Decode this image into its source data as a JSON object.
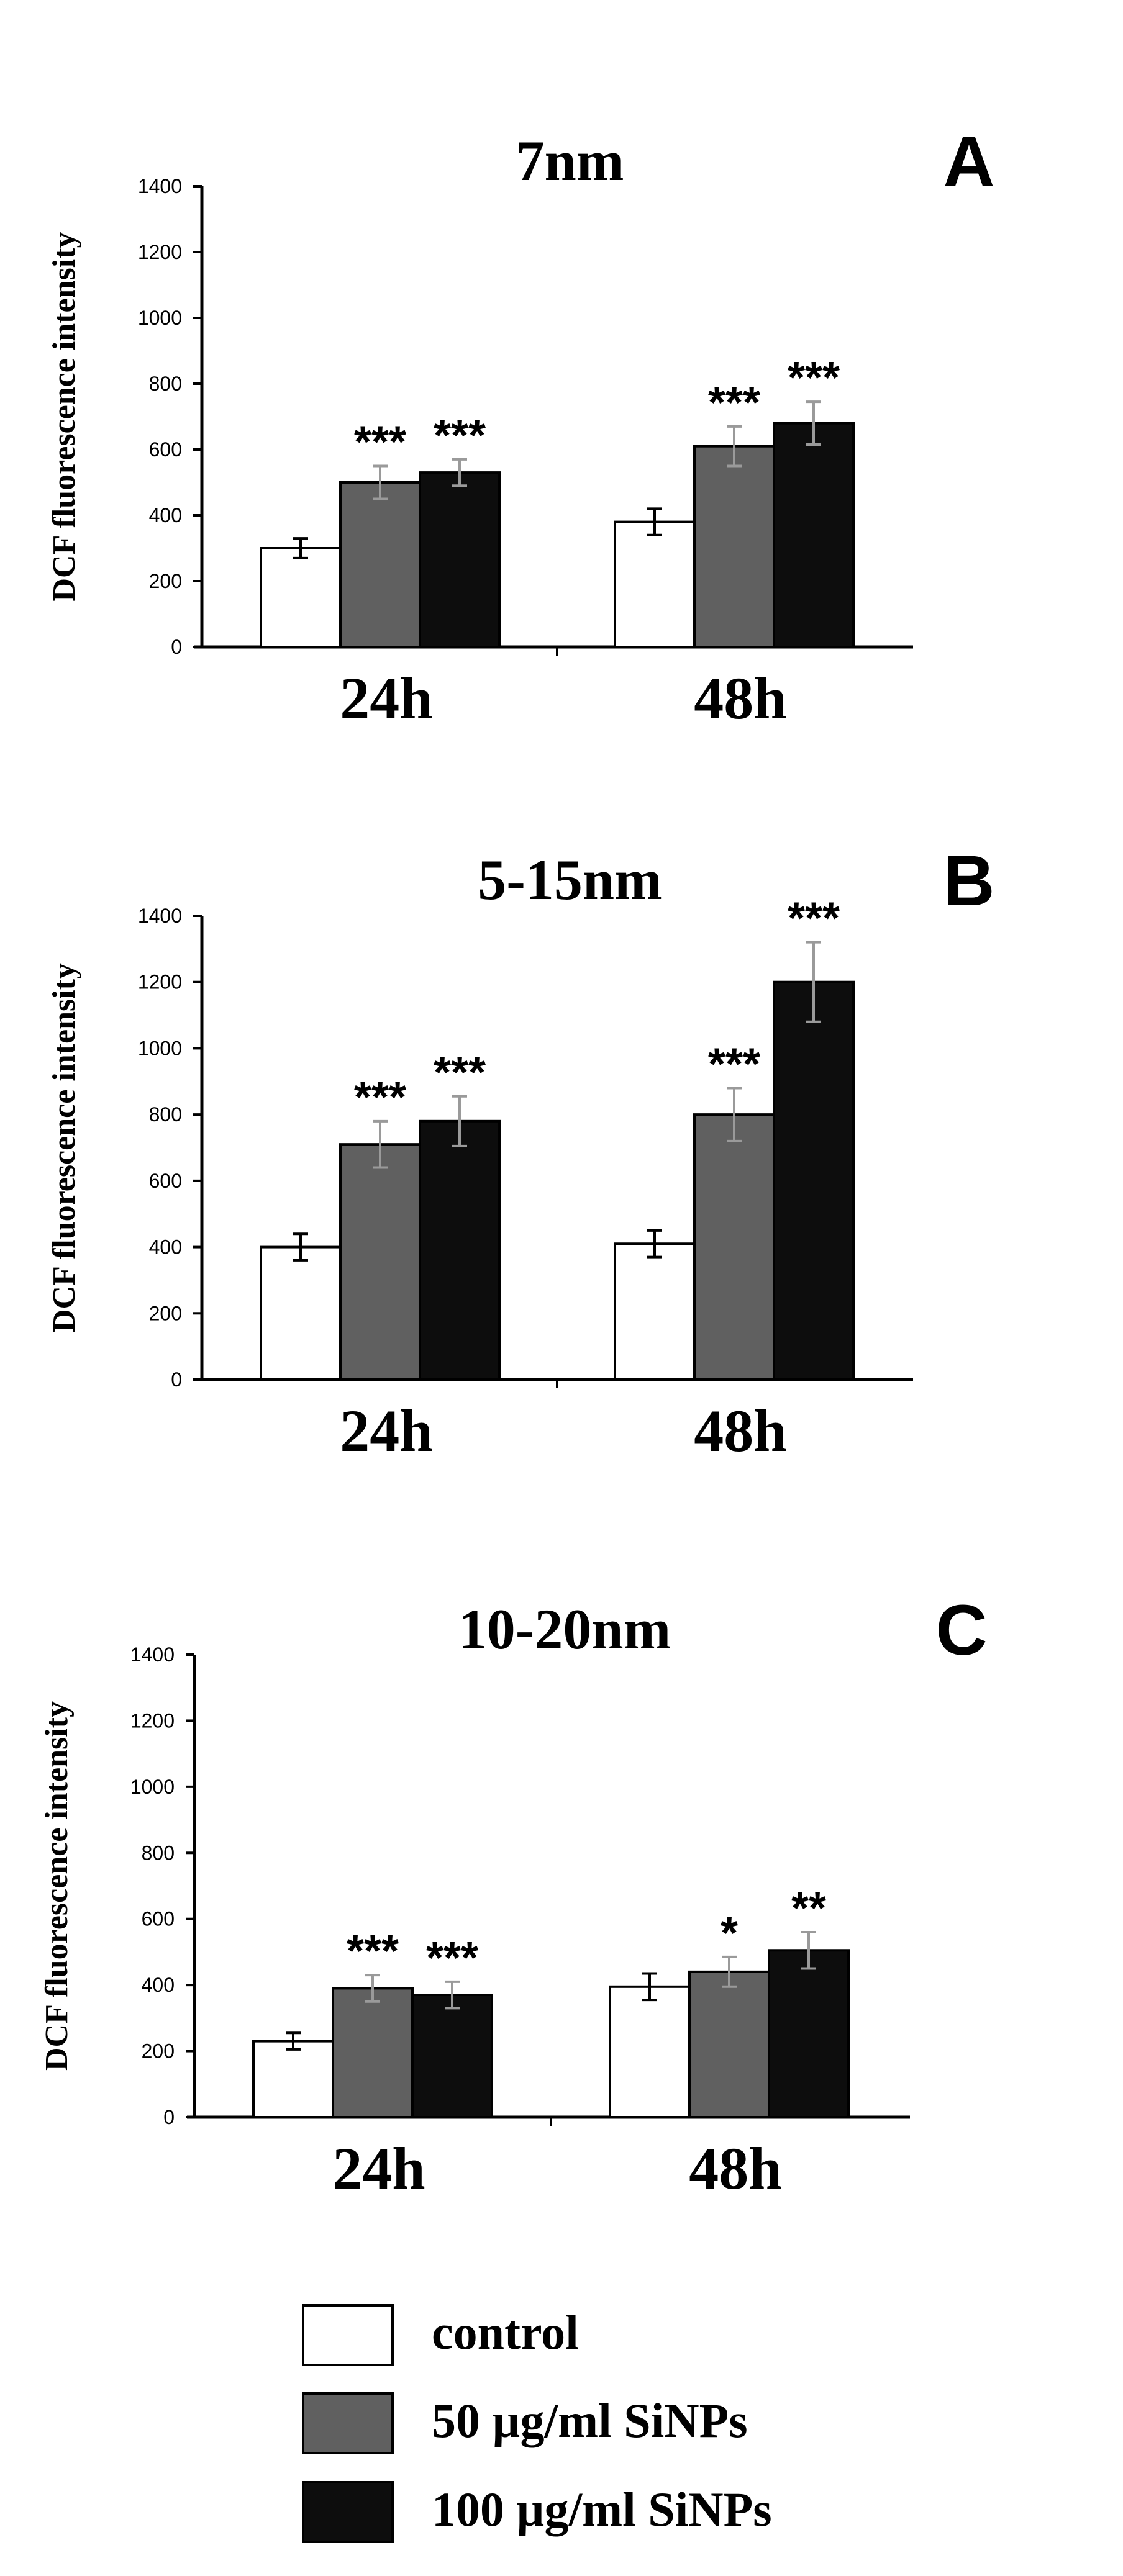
{
  "chart_data": [
    {
      "type": "bar",
      "panel_letter": "A",
      "title": "7nm",
      "ylabel": "DCF fluorescence intensity",
      "ylim": [
        0,
        1400
      ],
      "yticks": [
        0,
        200,
        400,
        600,
        800,
        1000,
        1200,
        1400
      ],
      "categories": [
        "24h",
        "48h"
      ],
      "series": [
        {
          "values": [
            300,
            380
          ],
          "errors": [
            30,
            40
          ],
          "significance": [
            "",
            ""
          ]
        },
        {
          "values": [
            500,
            610
          ],
          "errors": [
            50,
            60
          ],
          "significance": [
            "***",
            "***"
          ]
        },
        {
          "values": [
            530,
            680
          ],
          "errors": [
            40,
            65
          ],
          "significance": [
            "***",
            "***"
          ]
        }
      ]
    },
    {
      "type": "bar",
      "panel_letter": "B",
      "title": "5-15nm",
      "ylabel": "DCF fluorescence intensity",
      "ylim": [
        0,
        1400
      ],
      "yticks": [
        0,
        200,
        400,
        600,
        800,
        1000,
        1200,
        1400
      ],
      "categories": [
        "24h",
        "48h"
      ],
      "series": [
        {
          "values": [
            400,
            410
          ],
          "errors": [
            40,
            40
          ],
          "significance": [
            "",
            ""
          ]
        },
        {
          "values": [
            710,
            800
          ],
          "errors": [
            70,
            80
          ],
          "significance": [
            "***",
            "***"
          ]
        },
        {
          "values": [
            780,
            1200
          ],
          "errors": [
            75,
            120
          ],
          "significance": [
            "***",
            "***"
          ]
        }
      ]
    },
    {
      "type": "bar",
      "panel_letter": "C",
      "title": "10-20nm",
      "ylabel": "DCF fluorescence intensity",
      "ylim": [
        0,
        1400
      ],
      "yticks": [
        0,
        200,
        400,
        600,
        800,
        1000,
        1200,
        1400
      ],
      "categories": [
        "24h",
        "48h"
      ],
      "series": [
        {
          "values": [
            230,
            395
          ],
          "errors": [
            25,
            40
          ],
          "significance": [
            "",
            ""
          ]
        },
        {
          "values": [
            390,
            440
          ],
          "errors": [
            40,
            45
          ],
          "significance": [
            "***",
            "*"
          ]
        },
        {
          "values": [
            370,
            505
          ],
          "errors": [
            40,
            55
          ],
          "significance": [
            "***",
            "**"
          ]
        }
      ]
    }
  ],
  "legend": {
    "placement": "bottom",
    "items": [
      {
        "label": "control",
        "color": "#ffffff"
      },
      {
        "label": "50 µg/ml  SiNPs",
        "color": "#606060"
      },
      {
        "label": "100 µg/ml  SiNPs",
        "color": "#0d0d0d"
      }
    ]
  },
  "colors": {
    "axis": "#000000",
    "text": "#000000",
    "bar_stroke": "#000000"
  }
}
